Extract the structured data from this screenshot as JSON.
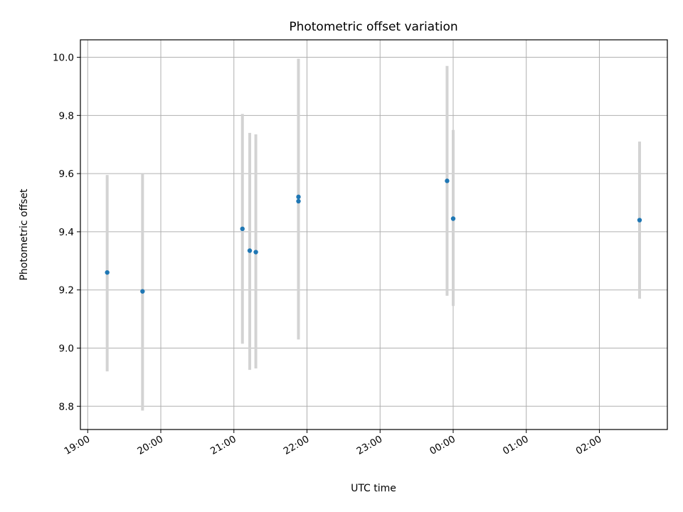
{
  "chart_data": {
    "type": "scatter",
    "title": "Photometric offset variation",
    "xlabel": "UTC time",
    "ylabel": "Photometric offset",
    "x_tick_labels": [
      "19:00",
      "20:00",
      "21:00",
      "22:00",
      "23:00",
      "00:00",
      "01:00",
      "02:00"
    ],
    "x_ticks_hours": [
      0,
      1,
      2,
      3,
      4,
      5,
      6,
      7
    ],
    "xlim_hours": [
      -0.1,
      7.93
    ],
    "y_ticks": [
      8.8,
      9.0,
      9.2,
      9.4,
      9.6,
      9.8,
      10.0
    ],
    "ylim": [
      8.72,
      10.06
    ],
    "grid": true,
    "points": [
      {
        "time": "19:16",
        "y": 9.26,
        "err_low": 8.92,
        "err_high": 9.595
      },
      {
        "time": "19:45",
        "y": 9.195,
        "err_low": 8.785,
        "err_high": 9.6
      },
      {
        "time": "21:07",
        "y": 9.41,
        "err_low": 9.015,
        "err_high": 9.805
      },
      {
        "time": "21:13",
        "y": 9.335,
        "err_low": 8.925,
        "err_high": 9.74
      },
      {
        "time": "21:18",
        "y": 9.33,
        "err_low": 8.93,
        "err_high": 9.735
      },
      {
        "time": "21:53",
        "y": 9.52,
        "err_low": 9.03,
        "err_high": 9.995
      },
      {
        "time": "21:53",
        "y": 9.505,
        "err_low": 9.03,
        "err_high": 9.995
      },
      {
        "time": "23:55",
        "y": 9.575,
        "err_low": 9.18,
        "err_high": 9.97
      },
      {
        "time": "00:00",
        "y": 9.445,
        "err_low": 9.145,
        "err_high": 9.75
      },
      {
        "time": "02:33",
        "y": 9.44,
        "err_low": 9.17,
        "err_high": 9.71
      }
    ],
    "point_color": "#1f77b4",
    "errorbar_color": "#d3d3d3"
  }
}
